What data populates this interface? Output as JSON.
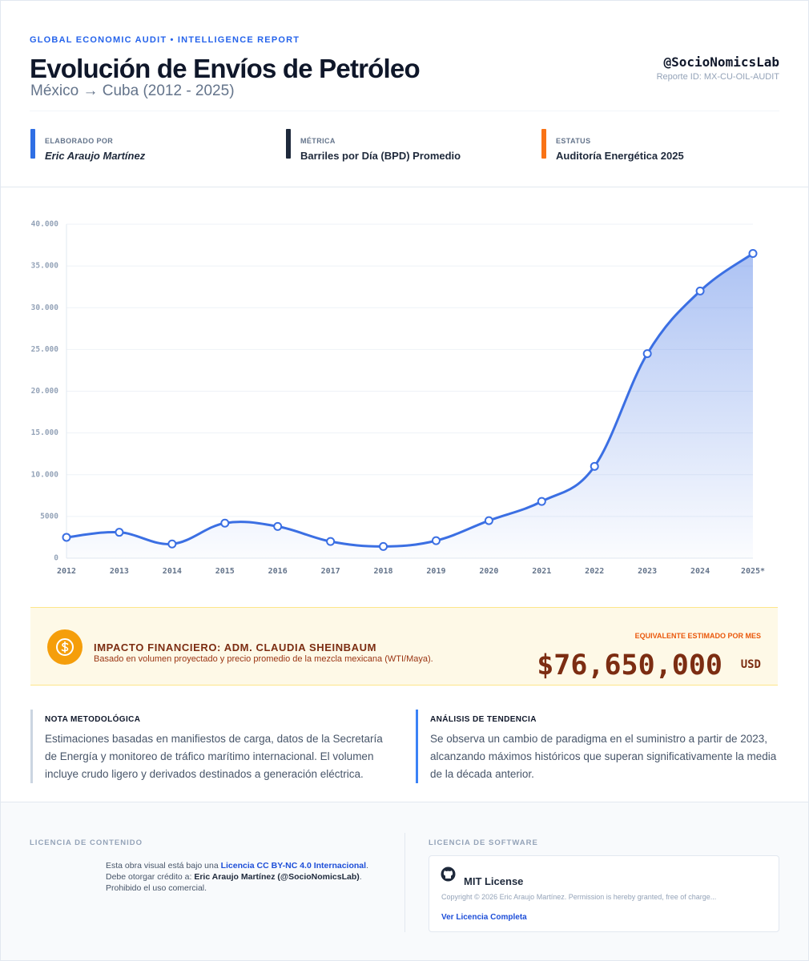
{
  "header": {
    "kicker": "GLOBAL ECONOMIC AUDIT • INTELLIGENCE REPORT",
    "title": "Evolución de Envíos de Petróleo",
    "subtitle": "México → Cuba (2012 - 2025)",
    "handle": "@SocioNomicsLab",
    "report_id": "Reporte ID: MX-CU-OIL-AUDIT"
  },
  "meta": [
    {
      "label": "ELABORADO POR",
      "value": "Eric Araujo Martínez",
      "color": "#2f6fe4"
    },
    {
      "label": "MÉTRICA",
      "value": "Barriles por Día (BPD) Promedio",
      "color": "#1e293b"
    },
    {
      "label": "ESTATUS",
      "value": "Auditoría Energética 2025",
      "color": "#f97316"
    }
  ],
  "chart_data": {
    "type": "line",
    "categories": [
      "2012",
      "2013",
      "2014",
      "2015",
      "2016",
      "2017",
      "2018",
      "2019",
      "2020",
      "2021",
      "2022",
      "2023",
      "2024",
      "2025*"
    ],
    "values": [
      2500,
      3100,
      1700,
      4200,
      3800,
      2000,
      1400,
      2100,
      4500,
      6800,
      11000,
      24500,
      32000,
      36500
    ],
    "color": "#3b6fe3",
    "ylim": [
      0,
      40000
    ],
    "yticks": [
      0,
      5000,
      {
        "value": 10000,
        "label": "10.000"
      },
      {
        "value": 15000,
        "label": "15.000"
      },
      {
        "value": 20000,
        "label": "20.000"
      },
      {
        "value": 25000,
        "label": "25.000"
      },
      {
        "value": 30000,
        "label": "30.000"
      },
      {
        "value": 35000,
        "label": "35.000"
      },
      {
        "value": 40000,
        "label": "40.000"
      }
    ],
    "grid": true
  },
  "impact": {
    "title": "IMPACTO FINANCIERO: ADM. CLAUDIA SHEINBAUM",
    "subtitle": "Basado en volumen proyectado y precio promedio de la mezcla mexicana (WTI/Maya).",
    "caption": "EQUIVALENTE ESTIMADO POR MES",
    "amount": "$76,650,000",
    "currency": "USD"
  },
  "notes": [
    {
      "title": "NOTA METODOLÓGICA",
      "text": "Estimaciones basadas en manifiestos de carga, datos de la Secretaría de Energía y monitoreo de tráfico marítimo internacional. El volumen incluye crudo ligero y derivados destinados a generación eléctrica."
    },
    {
      "title": "ANÁLISIS DE TENDENCIA",
      "text": "Se observa un cambio de paradigma en el suministro a partir de 2023, alcanzando máximos históricos que superan significativamente la media de la década anterior."
    }
  ],
  "footer": {
    "content_license": {
      "heading": "LICENCIA DE CONTENIDO",
      "intro": "Esta obra visual está bajo una ",
      "link": "Licencia CC BY-NC 4.0 Internacional",
      "intro_end": ".",
      "credit_intro": "Debe otorgar crédito a: ",
      "credit": "Eric Araujo Martínez (@SocioNomicsLab)",
      "credit_end": ".",
      "restriction": "Prohibido el uso comercial."
    },
    "software_license": {
      "heading": "LICENCIA DE SOFTWARE",
      "name": "MIT License",
      "text": "Copyright © 2026 Eric Araujo Martínez. Permission is hereby granted, free of charge...",
      "link": "Ver Licencia Completa"
    }
  }
}
